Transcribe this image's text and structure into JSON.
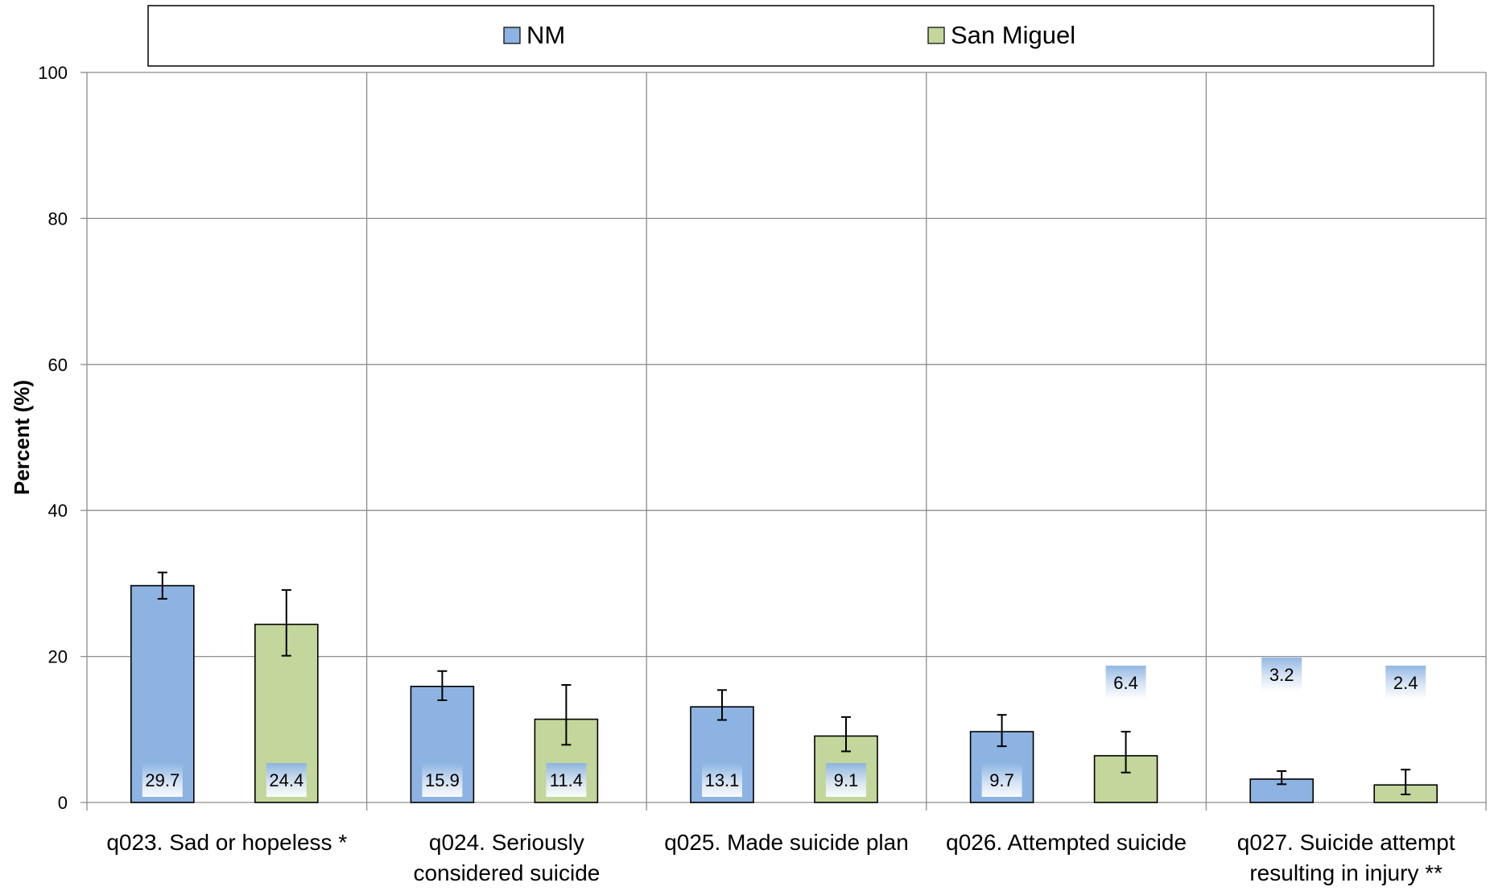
{
  "chart_data": {
    "type": "bar",
    "title": "",
    "xlabel": "",
    "ylabel": "Percent (%)",
    "ylim": [
      0,
      100
    ],
    "yticks": [
      0,
      20,
      40,
      60,
      80,
      100
    ],
    "grid": true,
    "legend_position": "top",
    "categories": [
      [
        "q023. Sad or hopeless *"
      ],
      [
        "q024. Seriously",
        "considered suicide"
      ],
      [
        "q025. Made suicide plan"
      ],
      [
        "q026. Attempted suicide"
      ],
      [
        "q027. Suicide attempt",
        "resulting in injury **"
      ]
    ],
    "series": [
      {
        "name": "NM",
        "color": "#8DB3E2",
        "values": [
          29.7,
          15.9,
          13.1,
          9.7,
          3.2
        ],
        "ci_low": [
          27.9,
          14.0,
          11.3,
          7.7,
          2.5
        ],
        "ci_high": [
          31.5,
          18.0,
          15.4,
          12.0,
          4.3
        ]
      },
      {
        "name": "San Miguel",
        "color": "#C3D69B",
        "values": [
          24.4,
          11.4,
          9.1,
          6.4,
          2.4
        ],
        "ci_low": [
          20.1,
          7.9,
          7.0,
          4.1,
          1.1
        ],
        "ci_high": [
          29.1,
          16.1,
          11.7,
          9.7,
          4.5
        ]
      }
    ],
    "data_labels": [
      [
        "29.7",
        "15.9",
        "13.1",
        "9.7",
        "3.2"
      ],
      [
        "24.4",
        "11.4",
        "9.1",
        "6.4",
        "2.4"
      ]
    ]
  }
}
